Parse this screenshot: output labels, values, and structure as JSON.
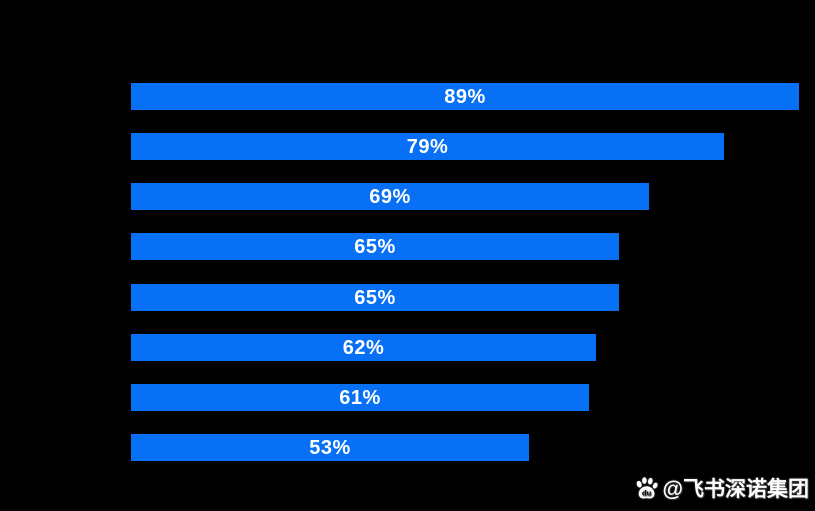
{
  "background_color": "#000000",
  "chart_data": {
    "type": "bar",
    "orientation": "horizontal",
    "title": "",
    "xlabel": "",
    "ylabel": "",
    "xlim": [
      0,
      100
    ],
    "grid": false,
    "legend": false,
    "categories_visible": false,
    "categories": [
      "",
      "",
      "",
      "",
      "",
      "",
      "",
      ""
    ],
    "values": [
      89,
      79,
      69,
      65,
      65,
      62,
      61,
      53
    ],
    "value_labels": [
      "89%",
      "79%",
      "69%",
      "65%",
      "65%",
      "62%",
      "61%",
      "53%"
    ],
    "bar_color": "#0870F4",
    "value_label_color": "#FFFFFF"
  },
  "watermark": {
    "icon": "baidu-paw-icon",
    "icon_inner_text": "du",
    "text": "@飞书深诺集团",
    "color": "#FFFFFF"
  }
}
